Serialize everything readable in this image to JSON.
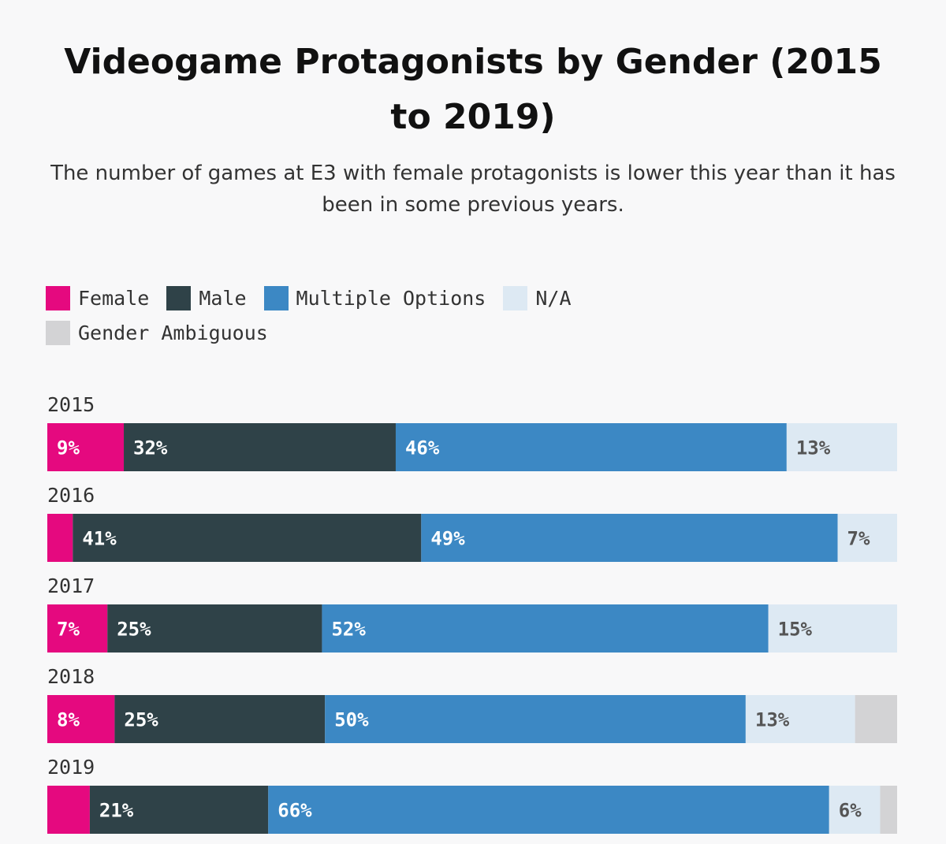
{
  "chart_data": {
    "type": "bar",
    "orientation": "horizontal-stacked-100",
    "title": "Videogame Protagonists by Gender (2015 to 2019)",
    "subtitle": "The number of games at E3 with female protagonists is lower this year than it has been in some previous years.",
    "categories": [
      "2015",
      "2016",
      "2017",
      "2018",
      "2019"
    ],
    "series": [
      {
        "name": "Female",
        "color": "#e5097f",
        "values": [
          9,
          3,
          7,
          8,
          5
        ],
        "labels": [
          "9%",
          "",
          "7%",
          "8%",
          ""
        ]
      },
      {
        "name": "Male",
        "color": "#2f4248",
        "values": [
          32,
          41,
          25,
          25,
          21
        ],
        "labels": [
          "32%",
          "41%",
          "25%",
          "25%",
          "21%"
        ]
      },
      {
        "name": "Multiple Options",
        "color": "#3c88c4",
        "values": [
          46,
          49,
          52,
          50,
          66
        ],
        "labels": [
          "46%",
          "49%",
          "52%",
          "50%",
          "66%"
        ]
      },
      {
        "name": "N/A",
        "color": "#dde9f3",
        "values": [
          13,
          7,
          15,
          13,
          6
        ],
        "labels": [
          "13%",
          "7%",
          "15%",
          "13%",
          "6%"
        ]
      },
      {
        "name": "Gender Ambiguous",
        "color": "#d3d3d5",
        "values": [
          0,
          0,
          0,
          5,
          2
        ],
        "labels": [
          "",
          "",
          "",
          "",
          ""
        ]
      }
    ],
    "xlim": [
      0,
      100
    ],
    "legend": "top-left",
    "grid": false
  }
}
